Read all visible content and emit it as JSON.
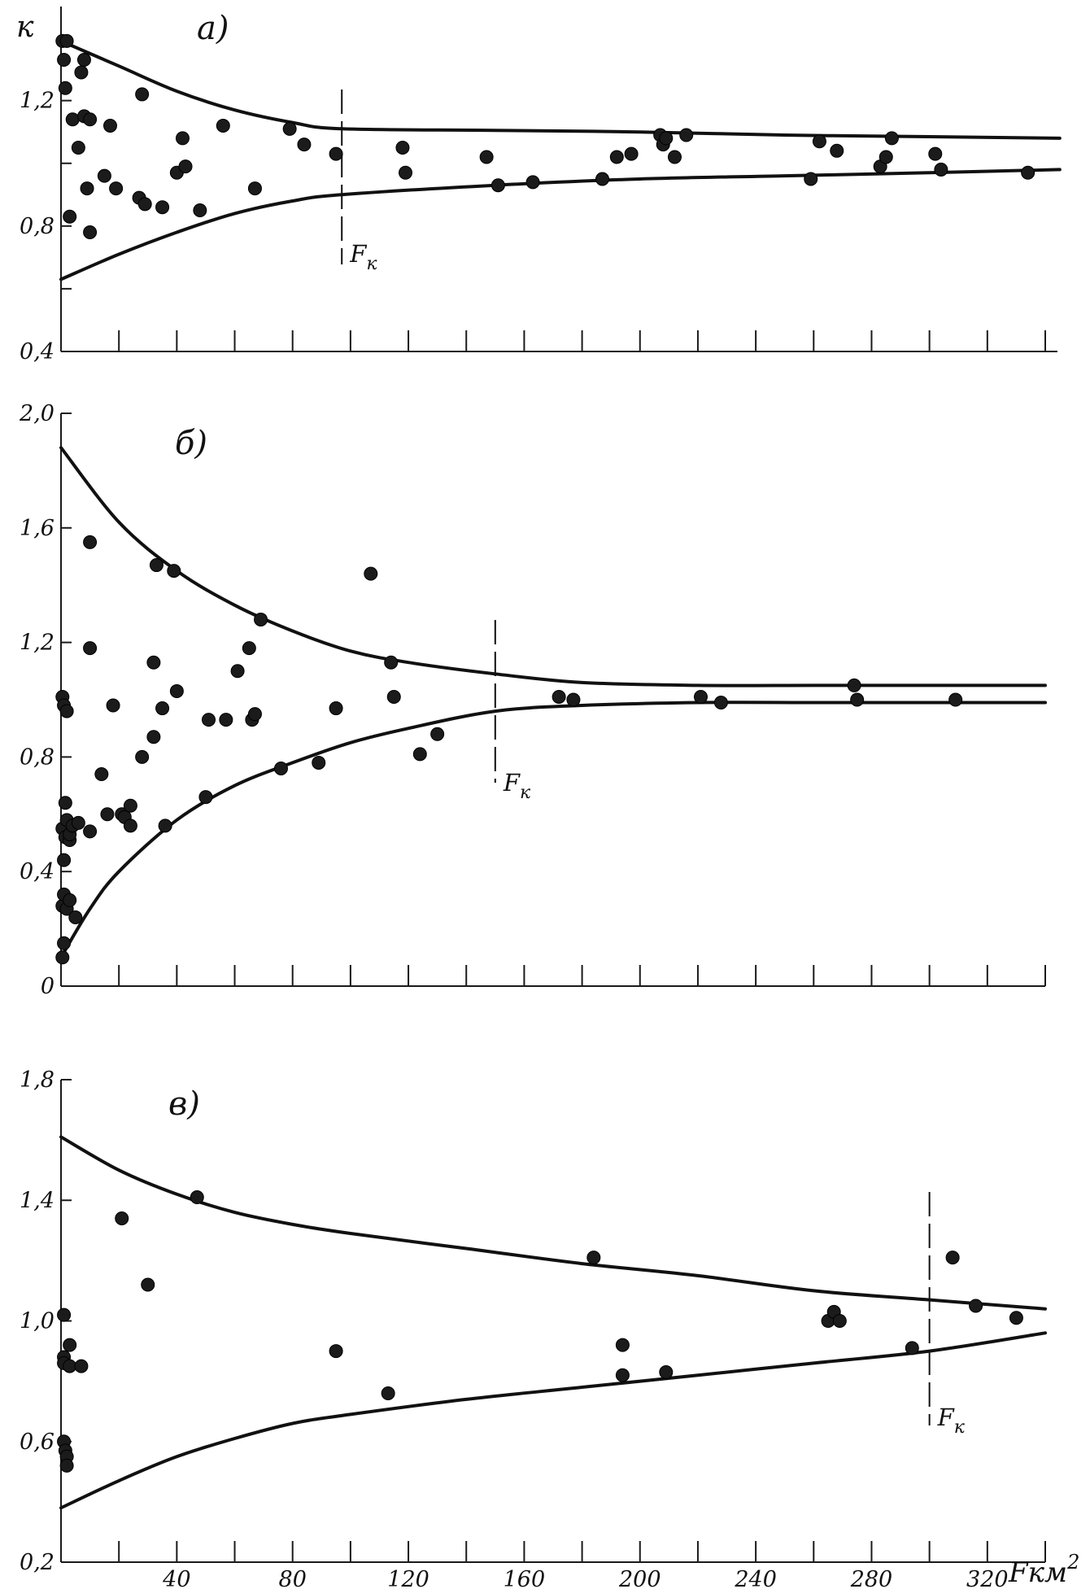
{
  "x_axis": {
    "label": "Fкм",
    "label_superscript": "2",
    "ticks": [
      20,
      40,
      60,
      80,
      100,
      120,
      140,
      160,
      180,
      200,
      220,
      240,
      260,
      280,
      300,
      320,
      340
    ],
    "tick_labels": [
      "40",
      "80",
      "120",
      "160",
      "200",
      "240",
      "280",
      "320"
    ]
  },
  "y_axis_label": "к",
  "fk_label": "F",
  "fk_subscript": "к",
  "chart_data": [
    {
      "type": "scatter",
      "panel_label": "а)",
      "xlim": [
        0,
        340
      ],
      "ylim": [
        0.4,
        1.5
      ],
      "y_ticks": [
        0.4,
        0.6,
        0.8,
        1.0,
        1.2,
        1.4
      ],
      "y_tick_labels": [
        "0,4",
        "0,8",
        "1,2"
      ],
      "x_ticks_labeled": false,
      "Fk": 97,
      "upper_envelope": {
        "x": [
          0,
          20,
          40,
          60,
          80,
          97,
          150,
          200,
          250,
          300,
          345
        ],
        "y": [
          1.39,
          1.31,
          1.23,
          1.17,
          1.13,
          1.11,
          1.105,
          1.1,
          1.09,
          1.085,
          1.08
        ]
      },
      "lower_envelope": {
        "x": [
          0,
          20,
          40,
          60,
          80,
          97,
          150,
          200,
          250,
          300,
          345
        ],
        "y": [
          0.63,
          0.71,
          0.78,
          0.84,
          0.88,
          0.9,
          0.93,
          0.95,
          0.96,
          0.97,
          0.98
        ]
      },
      "points": {
        "x": [
          0.5,
          1,
          1.5,
          2,
          3,
          4,
          6,
          7,
          8,
          8,
          9,
          10,
          10,
          15,
          17,
          19,
          27,
          28,
          29,
          35,
          40,
          42,
          43,
          48,
          56,
          67,
          79,
          84,
          95,
          118,
          119,
          147,
          151,
          163,
          187,
          192,
          197,
          207,
          208,
          209,
          212,
          216,
          259,
          262,
          268,
          283,
          285,
          287,
          302,
          304,
          334
        ],
        "y": [
          1.39,
          1.33,
          1.24,
          1.39,
          0.83,
          1.14,
          1.05,
          1.29,
          1.33,
          1.15,
          0.92,
          0.78,
          1.14,
          0.96,
          1.12,
          0.92,
          0.89,
          1.22,
          0.87,
          0.86,
          0.97,
          1.08,
          0.99,
          0.85,
          1.12,
          0.92,
          1.11,
          1.06,
          1.03,
          1.05,
          0.97,
          1.02,
          0.93,
          0.94,
          0.95,
          1.02,
          1.03,
          1.09,
          1.06,
          1.08,
          1.02,
          1.09,
          0.95,
          1.07,
          1.04,
          0.99,
          1.02,
          1.08,
          1.03,
          0.98,
          0.97
        ]
      }
    },
    {
      "type": "scatter",
      "panel_label": "б)",
      "xlim": [
        0,
        340
      ],
      "ylim": [
        0,
        2.0
      ],
      "y_ticks": [
        0,
        0.4,
        0.8,
        1.2,
        1.6,
        2.0
      ],
      "y_tick_labels": [
        "0",
        "0,4",
        "0,8",
        "1,2",
        "1,6",
        "2,0"
      ],
      "x_ticks_labeled": false,
      "Fk": 150,
      "upper_envelope": {
        "x": [
          0,
          20,
          40,
          60,
          80,
          100,
          120,
          150,
          180,
          220,
          260,
          300,
          340
        ],
        "y": [
          1.88,
          1.62,
          1.45,
          1.33,
          1.24,
          1.17,
          1.13,
          1.09,
          1.06,
          1.05,
          1.05,
          1.05,
          1.05
        ]
      },
      "lower_envelope": {
        "x": [
          0,
          10,
          20,
          40,
          60,
          80,
          100,
          120,
          150,
          180,
          220,
          260,
          300,
          340
        ],
        "y": [
          0.1,
          0.27,
          0.4,
          0.58,
          0.7,
          0.78,
          0.85,
          0.9,
          0.96,
          0.98,
          0.99,
          0.99,
          0.99,
          0.99
        ]
      },
      "points": {
        "x": [
          0.5,
          0.5,
          0.5,
          0.5,
          1,
          1,
          1,
          1,
          1.5,
          1.5,
          2,
          2,
          2,
          3,
          3,
          3,
          4,
          5,
          6,
          10,
          10,
          10,
          14,
          16,
          18,
          21,
          22,
          24,
          24,
          28,
          32,
          32,
          33,
          35,
          36,
          39,
          40,
          50,
          51,
          57,
          61,
          65,
          66,
          67,
          69,
          76,
          89,
          95,
          107,
          114,
          115,
          124,
          130,
          172,
          177,
          221,
          228,
          274,
          275,
          309
        ],
        "y": [
          0.1,
          0.28,
          0.55,
          1.01,
          0.15,
          0.32,
          0.44,
          0.98,
          0.52,
          0.64,
          0.27,
          0.58,
          0.96,
          0.3,
          0.51,
          0.53,
          0.56,
          0.24,
          0.57,
          0.54,
          1.18,
          1.55,
          0.74,
          0.6,
          0.98,
          0.6,
          0.59,
          0.56,
          0.63,
          0.8,
          0.87,
          1.13,
          1.47,
          0.97,
          0.56,
          1.45,
          1.03,
          0.66,
          0.93,
          0.93,
          1.1,
          1.18,
          0.93,
          0.95,
          1.28,
          0.76,
          0.78,
          0.97,
          1.44,
          1.13,
          1.01,
          0.81,
          0.88,
          1.01,
          1.0,
          1.01,
          0.99,
          1.05,
          1.0,
          1.0
        ]
      }
    },
    {
      "type": "scatter",
      "panel_label": "в)",
      "xlim": [
        0,
        340
      ],
      "ylim": [
        0.2,
        1.8
      ],
      "y_ticks": [
        0.2,
        0.6,
        1.0,
        1.4,
        1.8
      ],
      "y_tick_labels": [
        "0,2",
        "0,6",
        "1,0",
        "1,4",
        "1,8"
      ],
      "x_ticks_labeled": true,
      "Fk": 300,
      "upper_envelope": {
        "x": [
          0,
          20,
          40,
          60,
          80,
          100,
          140,
          180,
          220,
          260,
          300,
          340
        ],
        "y": [
          1.61,
          1.5,
          1.42,
          1.36,
          1.32,
          1.29,
          1.24,
          1.19,
          1.15,
          1.1,
          1.07,
          1.04
        ]
      },
      "lower_envelope": {
        "x": [
          0,
          20,
          40,
          60,
          80,
          100,
          140,
          180,
          220,
          260,
          300,
          340
        ],
        "y": [
          0.38,
          0.47,
          0.55,
          0.61,
          0.66,
          0.69,
          0.74,
          0.78,
          0.82,
          0.86,
          0.9,
          0.96
        ]
      },
      "points": {
        "x": [
          1,
          1,
          1,
          1,
          1.5,
          2,
          2,
          3,
          3,
          7,
          21,
          30,
          47,
          95,
          113,
          184,
          194,
          194,
          209,
          265,
          267,
          269,
          294,
          308,
          316,
          330
        ],
        "y": [
          1.02,
          0.88,
          0.86,
          0.6,
          0.57,
          0.55,
          0.52,
          0.85,
          0.92,
          0.85,
          1.34,
          1.12,
          1.41,
          0.9,
          0.76,
          1.21,
          0.82,
          0.92,
          0.83,
          1.0,
          1.03,
          1.0,
          0.91,
          1.21,
          1.05,
          1.01
        ]
      }
    }
  ]
}
